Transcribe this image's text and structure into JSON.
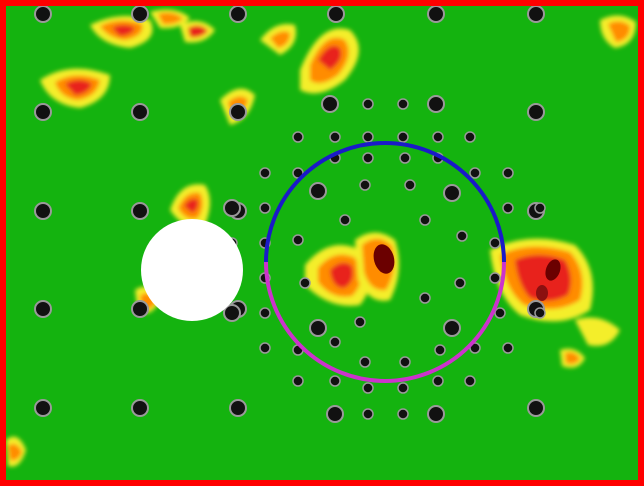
{
  "colors": {
    "field": "#14b30f",
    "frame": "#ff0000",
    "hotspot_yellow": "#f4ee2a",
    "hotspot_orange": "#ff8c00",
    "hotspot_red": "#e8231a",
    "hotspot_core": "#6b0000",
    "dot_fill": "#111111",
    "dot_ring": "#9a9a9a",
    "white_disc": "#ffffff",
    "ring_upper": "#1a1ac8",
    "ring_lower": "#cc33cc"
  },
  "elements": {
    "frame": "red-border",
    "field": "green-heatmap-field",
    "disc": "white-circle-obstacle",
    "ring": "blue-magenta-ring"
  }
}
